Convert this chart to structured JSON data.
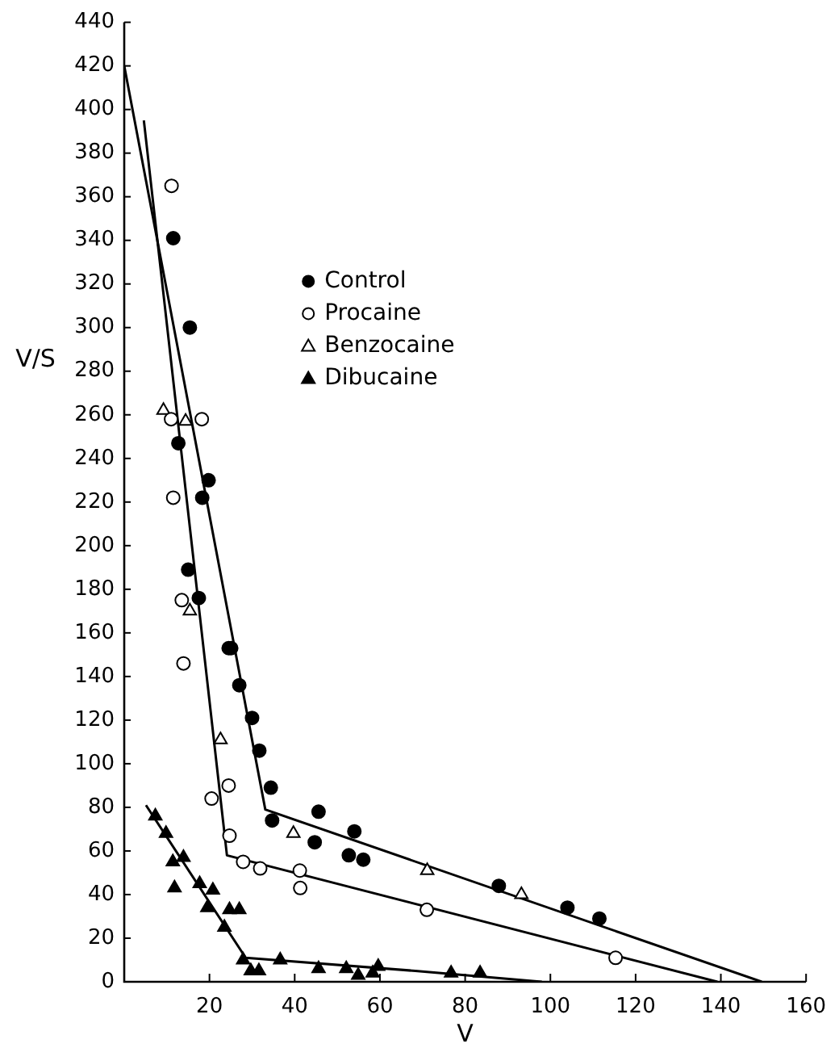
{
  "chart_data": {
    "type": "scatter",
    "xlabel": "V",
    "ylabel": "V/S",
    "xlim": [
      0,
      160
    ],
    "xticks": [
      20,
      40,
      60,
      80,
      100,
      120,
      140,
      160
    ],
    "ylim": [
      0,
      440
    ],
    "yticks": [
      0,
      20,
      40,
      60,
      80,
      100,
      120,
      140,
      160,
      180,
      200,
      220,
      240,
      260,
      280,
      300,
      320,
      340,
      360,
      380,
      400,
      420,
      440
    ],
    "grid": false,
    "legend": "top",
    "series": [
      {
        "name": "Control",
        "type": "scatter",
        "marker": "circle",
        "color": "#000000",
        "x": [
          11.5,
          15.4,
          12.7,
          18.3,
          19.8,
          15.0,
          17.5,
          24.5,
          25.1,
          27.0,
          30.0,
          31.7,
          34.4,
          34.7,
          45.6,
          44.7,
          54.0,
          52.7,
          56.1,
          87.9,
          104.0,
          111.5
        ],
        "values": [
          341,
          300,
          247,
          222,
          230,
          189,
          176,
          153,
          153,
          136,
          121,
          106,
          89,
          74,
          78,
          64,
          69,
          58,
          56,
          44,
          34,
          29
        ]
      },
      {
        "name": "Procaine",
        "type": "scatter",
        "marker": "circle",
        "color": "#ffffff",
        "x": [
          11.1,
          11.0,
          18.2,
          11.5,
          13.5,
          13.9,
          20.5,
          24.5,
          24.7,
          27.9,
          31.9,
          41.2,
          41.3,
          71.0,
          115.3
        ],
        "values": [
          365,
          258,
          258,
          222,
          175,
          146,
          84,
          90,
          67,
          55,
          52,
          51,
          43,
          33,
          11
        ]
      },
      {
        "name": "Benzocaine",
        "type": "scatter",
        "marker": "triangle",
        "color": "#ffffff",
        "x": [
          9.2,
          14.4,
          15.4,
          22.6,
          39.7,
          71.1,
          93.2
        ],
        "values": [
          262,
          257,
          170,
          111,
          68,
          51,
          40
        ]
      },
      {
        "name": "Dibucaine",
        "type": "scatter",
        "marker": "triangle",
        "color": "#000000",
        "x": [
          7.3,
          9.8,
          11.4,
          13.9,
          11.8,
          17.7,
          20.8,
          19.5,
          23.5,
          24.7,
          27.0,
          27.9,
          29.7,
          31.6,
          36.6,
          45.6,
          52.1,
          54.9,
          59.6,
          58.3,
          76.7,
          83.5
        ],
        "values": [
          76,
          68,
          55,
          57,
          43,
          45,
          42,
          34,
          25,
          33,
          33,
          10,
          5,
          5,
          10,
          6,
          6,
          3,
          7,
          4,
          4,
          4
        ]
      },
      {
        "type": "line",
        "marker": "none",
        "color": "#000000",
        "x": [
          0,
          33.1,
          149.6
        ],
        "values": [
          420,
          79,
          0
        ]
      },
      {
        "type": "line",
        "marker": "none",
        "color": "#000000",
        "x": [
          4.6,
          24.1,
          139.2
        ],
        "values": [
          395,
          58,
          0
        ]
      },
      {
        "type": "line",
        "marker": "none",
        "color": "#000000",
        "x": [
          5.1,
          28.5,
          68.3,
          98
        ],
        "values": [
          81,
          11,
          5,
          0
        ]
      }
    ]
  }
}
